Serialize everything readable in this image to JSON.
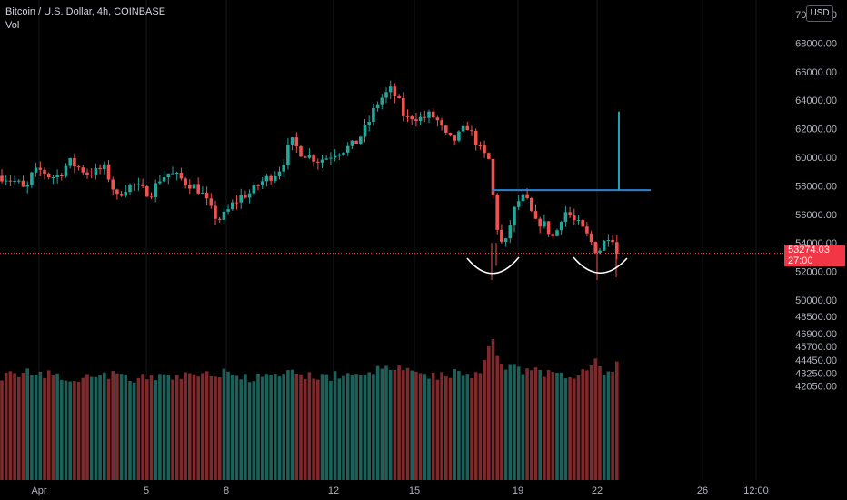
{
  "header": {
    "title": "Bitcoin / U.S. Dollar, 4h, COINBASE",
    "indicator": "Vol",
    "currency_button": "USD"
  },
  "price_label": {
    "price": "53274.03",
    "countdown": "27:00"
  },
  "colors": {
    "up": "#26a69a",
    "down": "#ef5350",
    "up_vol": "#1d5f59",
    "down_vol": "#7e2a2c",
    "neckline": "#2a84d6",
    "target": "#1fa3b1",
    "arc": "#ffffff",
    "price_line": "#ef5350"
  },
  "chart_data": {
    "type": "candlestick",
    "title": "Bitcoin / U.S. Dollar, 4h, COINBASE",
    "ylim": [
      41000,
      70000
    ],
    "y_ticks": [
      "70000.00",
      "68000.00",
      "66000.00",
      "64000.00",
      "62000.00",
      "60000.00",
      "58000.00",
      "56000.00",
      "54000.00",
      "52000.00",
      "50000.00",
      "48500.00",
      "46900.00",
      "45700.00",
      "44450.00",
      "43250.00",
      "42050.00"
    ],
    "x_ticks": [
      "Apr",
      "5",
      "8",
      "12",
      "15",
      "19",
      "22",
      "26",
      "12:00"
    ],
    "last_price": 53274.03,
    "neckline": 57700,
    "target_top": 63200,
    "pattern": "inverse head and shoulders",
    "volume_series": "Vol",
    "close_path": [
      [
        0,
        58700
      ],
      [
        10,
        58500
      ],
      [
        20,
        58200
      ],
      [
        28,
        57600
      ],
      [
        36,
        58900
      ],
      [
        46,
        59100
      ],
      [
        56,
        58600
      ],
      [
        66,
        58800
      ],
      [
        76,
        59700
      ],
      [
        86,
        59300
      ],
      [
        96,
        58900
      ],
      [
        106,
        59000
      ],
      [
        114,
        59300
      ],
      [
        122,
        58300
      ],
      [
        128,
        57100
      ],
      [
        136,
        57800
      ],
      [
        146,
        58100
      ],
      [
        156,
        57700
      ],
      [
        166,
        57500
      ],
      [
        176,
        58500
      ],
      [
        186,
        58900
      ],
      [
        196,
        58600
      ],
      [
        206,
        58200
      ],
      [
        216,
        57900
      ],
      [
        224,
        57300
      ],
      [
        232,
        56300
      ],
      [
        240,
        55600
      ],
      [
        248,
        56000
      ],
      [
        256,
        56700
      ],
      [
        266,
        57300
      ],
      [
        276,
        57500
      ],
      [
        286,
        58200
      ],
      [
        296,
        58600
      ],
      [
        306,
        59000
      ],
      [
        314,
        60000
      ],
      [
        320,
        61200
      ],
      [
        330,
        60400
      ],
      [
        340,
        60100
      ],
      [
        350,
        59800
      ],
      [
        360,
        60000
      ],
      [
        370,
        60400
      ],
      [
        380,
        60600
      ],
      [
        390,
        60900
      ],
      [
        398,
        61600
      ],
      [
        406,
        62500
      ],
      [
        414,
        63700
      ],
      [
        422,
        64300
      ],
      [
        430,
        64700
      ],
      [
        438,
        64000
      ],
      [
        446,
        62600
      ],
      [
        454,
        62900
      ],
      [
        464,
        62700
      ],
      [
        474,
        63000
      ],
      [
        482,
        62500
      ],
      [
        490,
        61500
      ],
      [
        498,
        61100
      ],
      [
        506,
        61600
      ],
      [
        514,
        62200
      ],
      [
        522,
        61300
      ],
      [
        530,
        60300
      ],
      [
        538,
        59800
      ],
      [
        542,
        57600
      ],
      [
        546,
        55300
      ],
      [
        550,
        54600
      ],
      [
        554,
        53300
      ],
      [
        560,
        55000
      ],
      [
        566,
        56300
      ],
      [
        572,
        57100
      ],
      [
        578,
        57200
      ],
      [
        584,
        56200
      ],
      [
        590,
        55300
      ],
      [
        596,
        55500
      ],
      [
        602,
        55000
      ],
      [
        608,
        54400
      ],
      [
        614,
        55000
      ],
      [
        620,
        56300
      ],
      [
        626,
        56000
      ],
      [
        632,
        55500
      ],
      [
        638,
        55200
      ],
      [
        644,
        54700
      ],
      [
        650,
        54100
      ],
      [
        656,
        53500
      ],
      [
        662,
        53600
      ],
      [
        668,
        54600
      ],
      [
        674,
        54400
      ],
      [
        679,
        53274
      ]
    ],
    "volume_path": [
      [
        0,
        43000
      ],
      [
        40,
        43300
      ],
      [
        80,
        42800
      ],
      [
        120,
        43100
      ],
      [
        160,
        42700
      ],
      [
        200,
        43000
      ],
      [
        240,
        43300
      ],
      [
        280,
        42700
      ],
      [
        320,
        43200
      ],
      [
        360,
        42900
      ],
      [
        400,
        43300
      ],
      [
        440,
        43700
      ],
      [
        470,
        42900
      ],
      [
        500,
        43300
      ],
      [
        530,
        43100
      ],
      [
        540,
        46900
      ],
      [
        550,
        44200
      ],
      [
        570,
        43600
      ],
      [
        600,
        43300
      ],
      [
        630,
        43000
      ],
      [
        656,
        44400
      ],
      [
        668,
        43100
      ],
      [
        679,
        44200
      ]
    ]
  }
}
